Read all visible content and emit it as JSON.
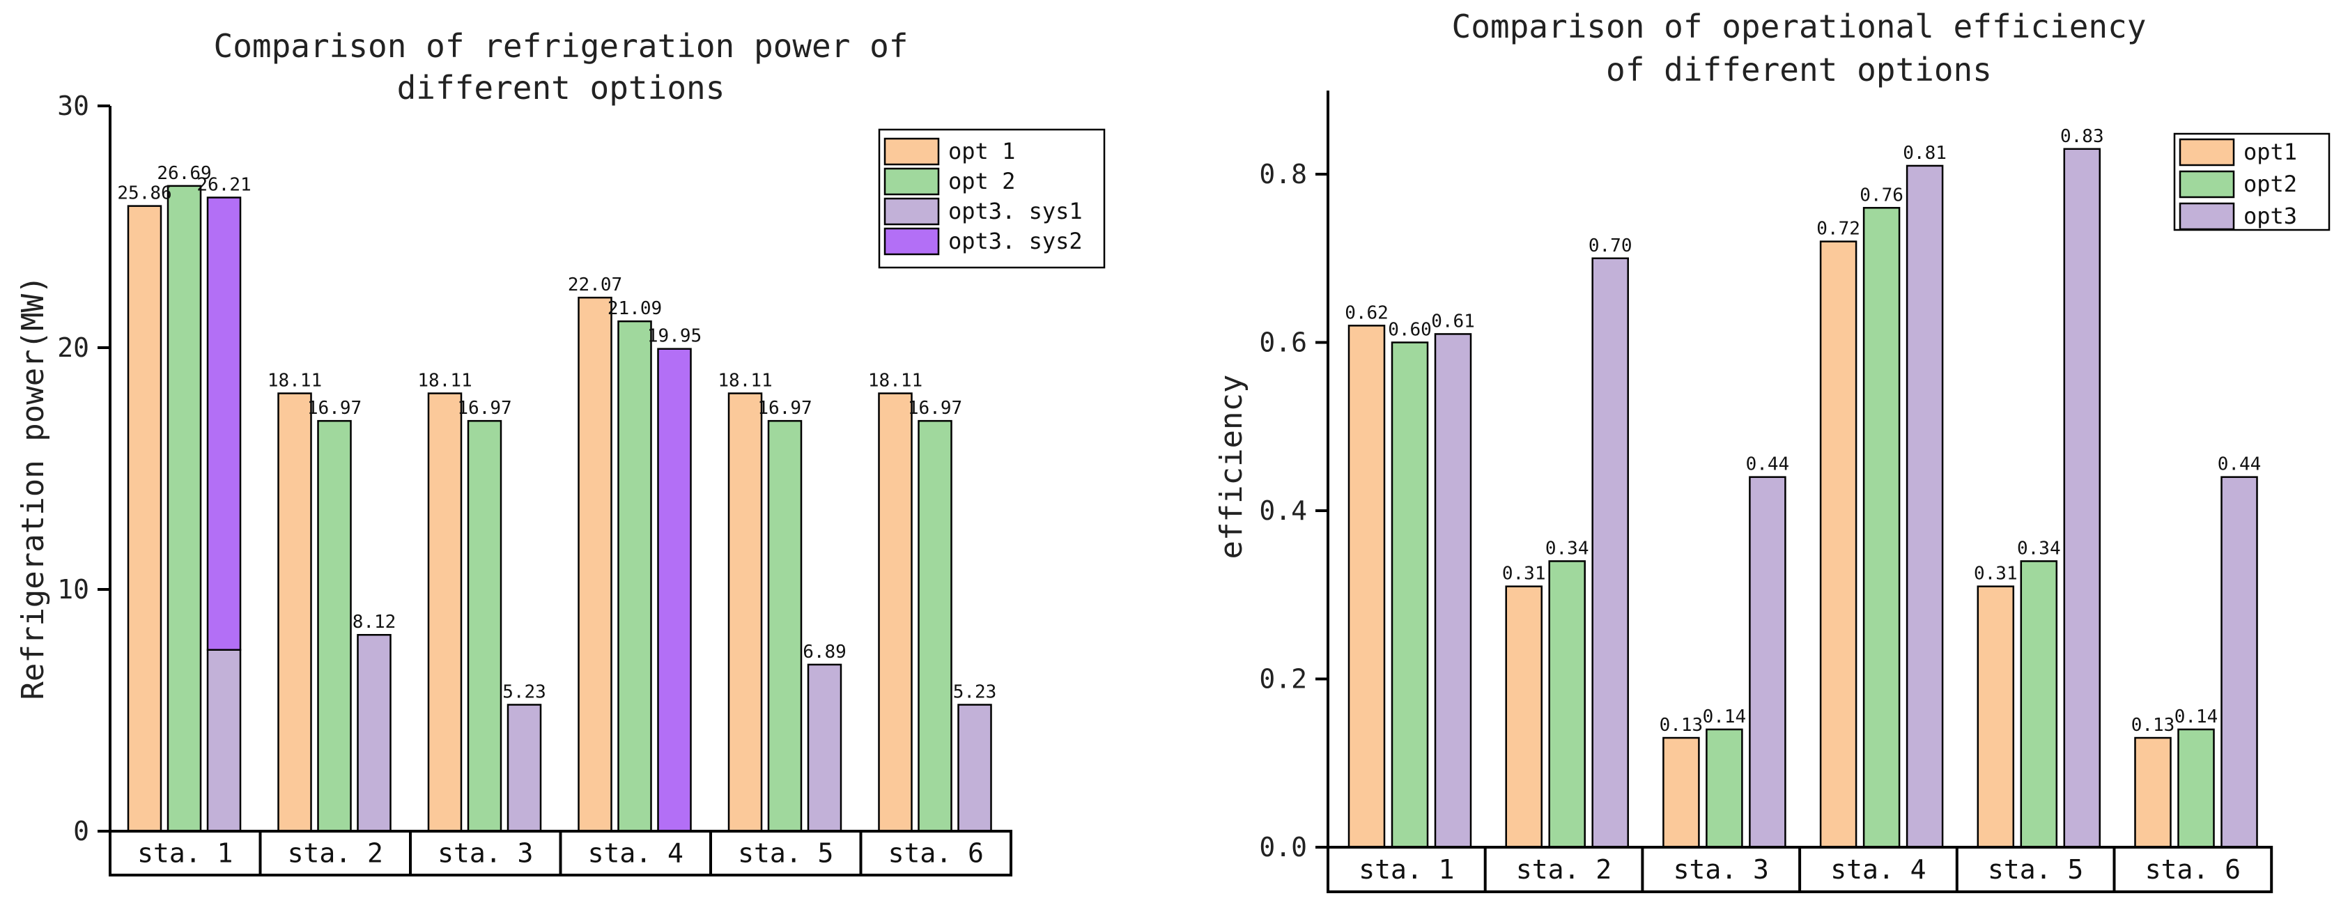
{
  "colors": {
    "opt1": "#FBC99A",
    "opt2": "#A0D89D",
    "opt3": "#C2B1D8",
    "opt3_sys2": "#B36FF6",
    "axis": "#000000"
  },
  "chart_data": [
    {
      "id": "refrigeration",
      "type": "bar",
      "title_lines": [
        "Comparison of refrigeration power of",
        "different options"
      ],
      "ylabel": "Refrigeration power(MW)",
      "ylim": [
        0,
        30
      ],
      "yticks": [
        0,
        10,
        20,
        30
      ],
      "categories": [
        "sta. 1",
        "sta. 2",
        "sta. 3",
        "sta. 4",
        "sta. 5",
        "sta. 6"
      ],
      "series": [
        {
          "name": "opt 1",
          "color_key": "opt1",
          "values": [
            25.86,
            18.11,
            18.11,
            22.07,
            18.11,
            18.11
          ],
          "labels": [
            "25.86",
            "18.11",
            "18.11",
            "22.07",
            "18.11",
            "18.11"
          ]
        },
        {
          "name": "opt 2",
          "color_key": "opt2",
          "values": [
            26.69,
            16.97,
            16.97,
            21.09,
            16.97,
            16.97
          ],
          "labels": [
            "26.69",
            "16.97",
            "16.97",
            "21.09",
            "16.97",
            "16.97"
          ]
        },
        {
          "name": "opt3. sys1",
          "color_key": "opt3",
          "stack": "opt3",
          "values": [
            7.5,
            8.12,
            5.23,
            0,
            6.89,
            5.23
          ],
          "labels": [
            "",
            "8.12",
            "5.23",
            "",
            "6.89",
            "5.23"
          ]
        },
        {
          "name": "opt3. sys2",
          "color_key": "opt3_sys2",
          "stack": "opt3",
          "values": [
            18.71,
            0,
            0,
            19.95,
            0,
            0
          ],
          "labels": [
            "26.21",
            "",
            "",
            "19.95",
            "",
            ""
          ]
        }
      ],
      "legend_position": "top-right"
    },
    {
      "id": "efficiency",
      "type": "bar",
      "title_lines": [
        "Comparison of operational efficiency",
        "of different options"
      ],
      "ylabel": "efficiency",
      "ylim": [
        0,
        0.9
      ],
      "yticks": [
        0.0,
        0.2,
        0.4,
        0.6,
        0.8
      ],
      "ytick_labels": [
        "0.0",
        "0.2",
        "0.4",
        "0.6",
        "0.8"
      ],
      "categories": [
        "sta.  1",
        "sta.  2",
        "sta.  3",
        "sta.  4",
        "sta.  5",
        "sta.  6"
      ],
      "series": [
        {
          "name": "opt1",
          "color_key": "opt1",
          "values": [
            0.62,
            0.31,
            0.13,
            0.72,
            0.31,
            0.13
          ],
          "labels": [
            "0.62",
            "0.31",
            "0.13",
            "0.72",
            "0.31",
            "0.13"
          ]
        },
        {
          "name": "opt2",
          "color_key": "opt2",
          "values": [
            0.6,
            0.34,
            0.14,
            0.76,
            0.34,
            0.14
          ],
          "labels": [
            "0.60",
            "0.34",
            "0.14",
            "0.76",
            "0.34",
            "0.14"
          ]
        },
        {
          "name": "opt3",
          "color_key": "opt3",
          "values": [
            0.61,
            0.7,
            0.44,
            0.81,
            0.83,
            0.44
          ],
          "labels": [
            "0.61",
            "0.70",
            "0.44",
            "0.81",
            "0.83",
            "0.44"
          ]
        }
      ],
      "legend_position": "top-right"
    }
  ]
}
